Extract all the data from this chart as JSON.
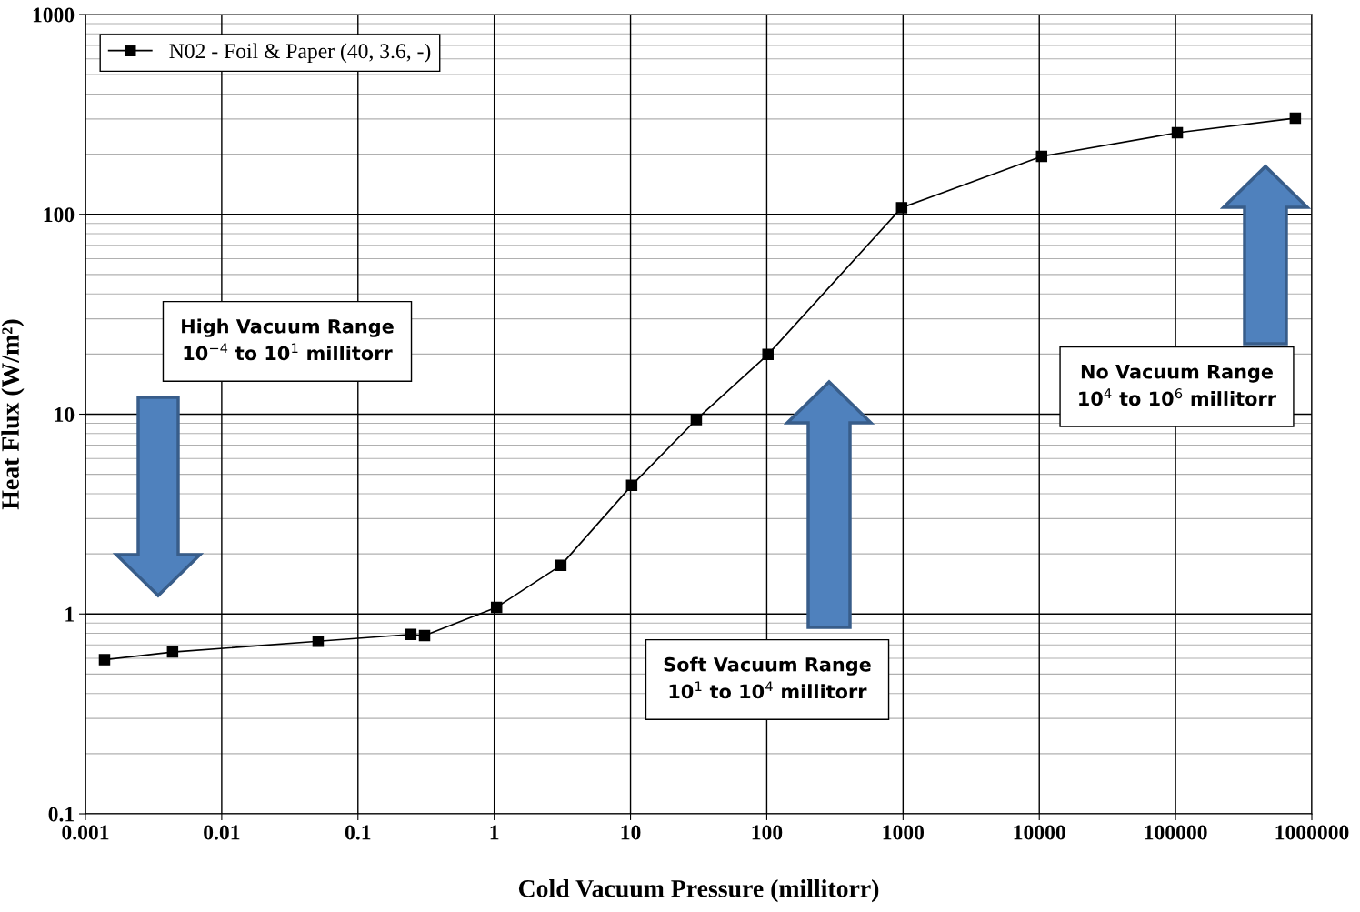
{
  "chart_data": {
    "type": "line",
    "xlabel": "Cold Vacuum Pressure (millitorr)",
    "ylabel": "Heat Flux (W/m²)",
    "x": [
      0.00138,
      0.00436,
      0.051,
      0.244,
      0.308,
      1.04,
      3.08,
      10.2,
      30.4,
      102,
      977,
      10400,
      103000,
      757000
    ],
    "series": [
      {
        "name": "N02 - Foil & Paper (40, 3.6, -)",
        "color": "#000000",
        "values": [
          0.59,
          0.645,
          0.73,
          0.79,
          0.78,
          1.08,
          1.75,
          4.4,
          9.4,
          19.9,
          108,
          195,
          256,
          303
        ]
      }
    ],
    "log": "xy",
    "xlim": [
      0.001,
      1000000
    ],
    "ylim": [
      0.1,
      1000
    ],
    "xticks": [
      0.001,
      0.01,
      0.1,
      1,
      10,
      100,
      1000,
      10000,
      100000,
      1000000
    ],
    "yticks": [
      0.1,
      1,
      10,
      100,
      1000
    ],
    "grid": true,
    "legend": "top left",
    "marker": "square",
    "line_style": "solid",
    "annotations": [
      "High Vacuum Range\n10$^{−4}$ to 10$^{1}$ millitorr",
      "Soft Vacuum Range\n10$^{1}$ to 10$^{4}$ millitorr",
      "No Vacuum Range\n10$^{4}$ to 10$^{6}$ millitorr"
    ]
  }
}
